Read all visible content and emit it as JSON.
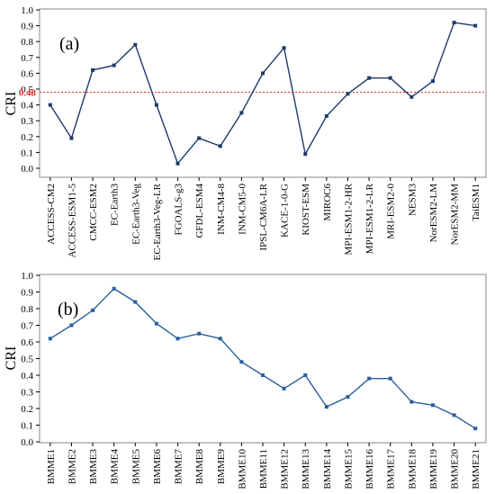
{
  "chart_data": [
    {
      "type": "line",
      "panel_label": "(a)",
      "ylabel": "CRI",
      "ylim": [
        0,
        1.0
      ],
      "yticks": [
        "0.0",
        "0.1",
        "0.2",
        "0.3",
        "0.4",
        "0.5",
        "0.6",
        "0.7",
        "0.8",
        "0.9",
        "1.0"
      ],
      "threshold": {
        "value": 0.48,
        "label": "0.48",
        "color": "#e03030"
      },
      "line_color": "#1f3a6b",
      "categories": [
        "ACCESS-CM2",
        "ACCESS-ESM1-5",
        "CMCC-ESM2",
        "EC-Earth3",
        "EC-Earth3-Veg",
        "EC-Earth3-Veg-LR",
        "FGOALS-g3",
        "GFDL-ESM4",
        "INM-CM4-8",
        "INM-CM5-0",
        "IPSL-CM6A-LR",
        "KACE-1-0-G",
        "KIOST-ESM",
        "MIROC6",
        "MPI-ESM1-2-HR",
        "MPI-ESM1-2-LR",
        "MRI-ESM2-0",
        "NESM3",
        "NorESM2-LM",
        "NorESM2-MM",
        "TaiESM1"
      ],
      "values": [
        0.4,
        0.19,
        0.62,
        0.65,
        0.78,
        0.4,
        0.03,
        0.19,
        0.14,
        0.35,
        0.6,
        0.76,
        0.09,
        0.33,
        0.47,
        0.57,
        0.57,
        0.45,
        0.55,
        0.92,
        0.9
      ]
    },
    {
      "type": "line",
      "panel_label": "(b)",
      "ylabel": "CRI",
      "ylim": [
        0,
        1.0
      ],
      "yticks": [
        "0.0",
        "0.1",
        "0.2",
        "0.3",
        "0.4",
        "0.5",
        "0.6",
        "0.7",
        "0.8",
        "0.9",
        "1.0"
      ],
      "line_color": "#2a5f9e",
      "categories": [
        "BMME1",
        "BMME2",
        "BMME3",
        "BMME4",
        "BMME5",
        "BMME6",
        "BMME7",
        "BMME8",
        "BMME9",
        "BMME10",
        "BMME11",
        "BMME12",
        "BMME13",
        "BMME14",
        "BMME15",
        "BMME16",
        "BMME17",
        "BMME18",
        "BMME19",
        "BMME20",
        "BMME21"
      ],
      "values": [
        0.62,
        0.7,
        0.79,
        0.92,
        0.84,
        0.71,
        0.62,
        0.65,
        0.62,
        0.48,
        0.4,
        0.32,
        0.4,
        0.21,
        0.27,
        0.38,
        0.38,
        0.24,
        0.22,
        0.16,
        0.08
      ]
    }
  ]
}
